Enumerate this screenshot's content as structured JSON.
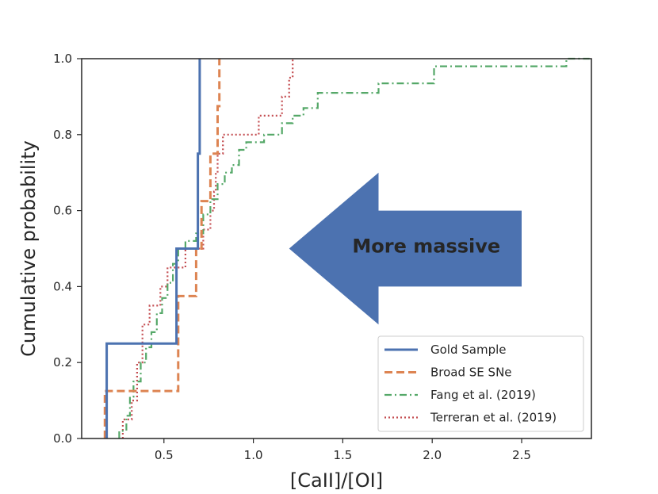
{
  "chart_data": {
    "type": "line",
    "subtype": "step-cdf",
    "title": "",
    "xlabel": "[CaII]/[OI]",
    "ylabel": "Cumulative probability",
    "xlim": [
      0.04,
      2.89
    ],
    "ylim": [
      0.0,
      1.0
    ],
    "xticks": [
      0.5,
      1.0,
      1.5,
      2.0,
      2.5
    ],
    "xtick_labels": [
      "0.5",
      "1.0",
      "1.5",
      "2.0",
      "2.5"
    ],
    "yticks": [
      0.0,
      0.2,
      0.4,
      0.6,
      0.8,
      1.0
    ],
    "ytick_labels": [
      "0.0",
      "0.2",
      "0.4",
      "0.6",
      "0.8",
      "1.0"
    ],
    "grid": false,
    "legend_position": "lower-right",
    "annotation": {
      "text": "More massive",
      "arrow_direction": "left",
      "arrow_tip": [
        1.2,
        0.5
      ],
      "arrow_tail": [
        2.5,
        0.5
      ],
      "color": "#4c72b0"
    },
    "series": [
      {
        "name": "Gold Sample",
        "color": "#4c72b0",
        "style": "solid",
        "values": [
          [
            0.18,
            0.0
          ],
          [
            0.18,
            0.25
          ],
          [
            0.57,
            0.25
          ],
          [
            0.57,
            0.5
          ],
          [
            0.69,
            0.5
          ],
          [
            0.69,
            0.75
          ],
          [
            0.7,
            0.75
          ],
          [
            0.7,
            1.0
          ]
        ]
      },
      {
        "name": "Broad SE SNe",
        "color": "#dd8452",
        "style": "dashed",
        "values": [
          [
            0.17,
            0.0
          ],
          [
            0.17,
            0.125
          ],
          [
            0.58,
            0.125
          ],
          [
            0.58,
            0.375
          ],
          [
            0.68,
            0.375
          ],
          [
            0.68,
            0.5
          ],
          [
            0.71,
            0.5
          ],
          [
            0.71,
            0.625
          ],
          [
            0.76,
            0.625
          ],
          [
            0.76,
            0.75
          ],
          [
            0.8,
            0.75
          ],
          [
            0.8,
            0.875
          ],
          [
            0.81,
            0.875
          ],
          [
            0.81,
            1.0
          ]
        ]
      },
      {
        "name": "Fang et al. (2019)",
        "color": "#55a868",
        "style": "dashdot",
        "values": [
          [
            0.25,
            0.0
          ],
          [
            0.25,
            0.02
          ],
          [
            0.29,
            0.02
          ],
          [
            0.29,
            0.06
          ],
          [
            0.31,
            0.06
          ],
          [
            0.31,
            0.11
          ],
          [
            0.33,
            0.11
          ],
          [
            0.33,
            0.15
          ],
          [
            0.37,
            0.15
          ],
          [
            0.37,
            0.2
          ],
          [
            0.4,
            0.2
          ],
          [
            0.4,
            0.24
          ],
          [
            0.43,
            0.24
          ],
          [
            0.43,
            0.28
          ],
          [
            0.46,
            0.28
          ],
          [
            0.46,
            0.33
          ],
          [
            0.49,
            0.33
          ],
          [
            0.49,
            0.37
          ],
          [
            0.52,
            0.37
          ],
          [
            0.52,
            0.41
          ],
          [
            0.55,
            0.41
          ],
          [
            0.55,
            0.46
          ],
          [
            0.58,
            0.46
          ],
          [
            0.58,
            0.5
          ],
          [
            0.62,
            0.5
          ],
          [
            0.62,
            0.52
          ],
          [
            0.68,
            0.52
          ],
          [
            0.68,
            0.54
          ],
          [
            0.72,
            0.54
          ],
          [
            0.72,
            0.59
          ],
          [
            0.76,
            0.59
          ],
          [
            0.76,
            0.63
          ],
          [
            0.8,
            0.63
          ],
          [
            0.8,
            0.67
          ],
          [
            0.84,
            0.67
          ],
          [
            0.84,
            0.7
          ],
          [
            0.88,
            0.7
          ],
          [
            0.88,
            0.72
          ],
          [
            0.92,
            0.72
          ],
          [
            0.92,
            0.76
          ],
          [
            0.96,
            0.76
          ],
          [
            0.96,
            0.78
          ],
          [
            1.06,
            0.78
          ],
          [
            1.06,
            0.8
          ],
          [
            1.16,
            0.8
          ],
          [
            1.16,
            0.83
          ],
          [
            1.22,
            0.83
          ],
          [
            1.22,
            0.85
          ],
          [
            1.28,
            0.85
          ],
          [
            1.28,
            0.87
          ],
          [
            1.36,
            0.87
          ],
          [
            1.36,
            0.91
          ],
          [
            1.7,
            0.91
          ],
          [
            1.7,
            0.935
          ],
          [
            2.01,
            0.935
          ],
          [
            2.01,
            0.98
          ],
          [
            2.75,
            0.98
          ],
          [
            2.75,
            1.0
          ],
          [
            2.88,
            1.0
          ]
        ]
      },
      {
        "name": "Terreran et al. (2019)",
        "color": "#c44e52",
        "style": "dotted",
        "values": [
          [
            0.27,
            0.0
          ],
          [
            0.27,
            0.05
          ],
          [
            0.32,
            0.05
          ],
          [
            0.32,
            0.1
          ],
          [
            0.35,
            0.1
          ],
          [
            0.35,
            0.2
          ],
          [
            0.38,
            0.2
          ],
          [
            0.38,
            0.3
          ],
          [
            0.42,
            0.3
          ],
          [
            0.42,
            0.35
          ],
          [
            0.48,
            0.35
          ],
          [
            0.48,
            0.4
          ],
          [
            0.52,
            0.4
          ],
          [
            0.52,
            0.45
          ],
          [
            0.62,
            0.45
          ],
          [
            0.62,
            0.5
          ],
          [
            0.72,
            0.5
          ],
          [
            0.72,
            0.55
          ],
          [
            0.76,
            0.55
          ],
          [
            0.76,
            0.6
          ],
          [
            0.78,
            0.6
          ],
          [
            0.78,
            0.65
          ],
          [
            0.79,
            0.65
          ],
          [
            0.79,
            0.7
          ],
          [
            0.8,
            0.7
          ],
          [
            0.8,
            0.75
          ],
          [
            0.83,
            0.75
          ],
          [
            0.83,
            0.8
          ],
          [
            1.03,
            0.8
          ],
          [
            1.03,
            0.85
          ],
          [
            1.16,
            0.85
          ],
          [
            1.16,
            0.9
          ],
          [
            1.2,
            0.9
          ],
          [
            1.2,
            0.95
          ],
          [
            1.22,
            0.95
          ],
          [
            1.22,
            1.0
          ]
        ]
      }
    ]
  }
}
